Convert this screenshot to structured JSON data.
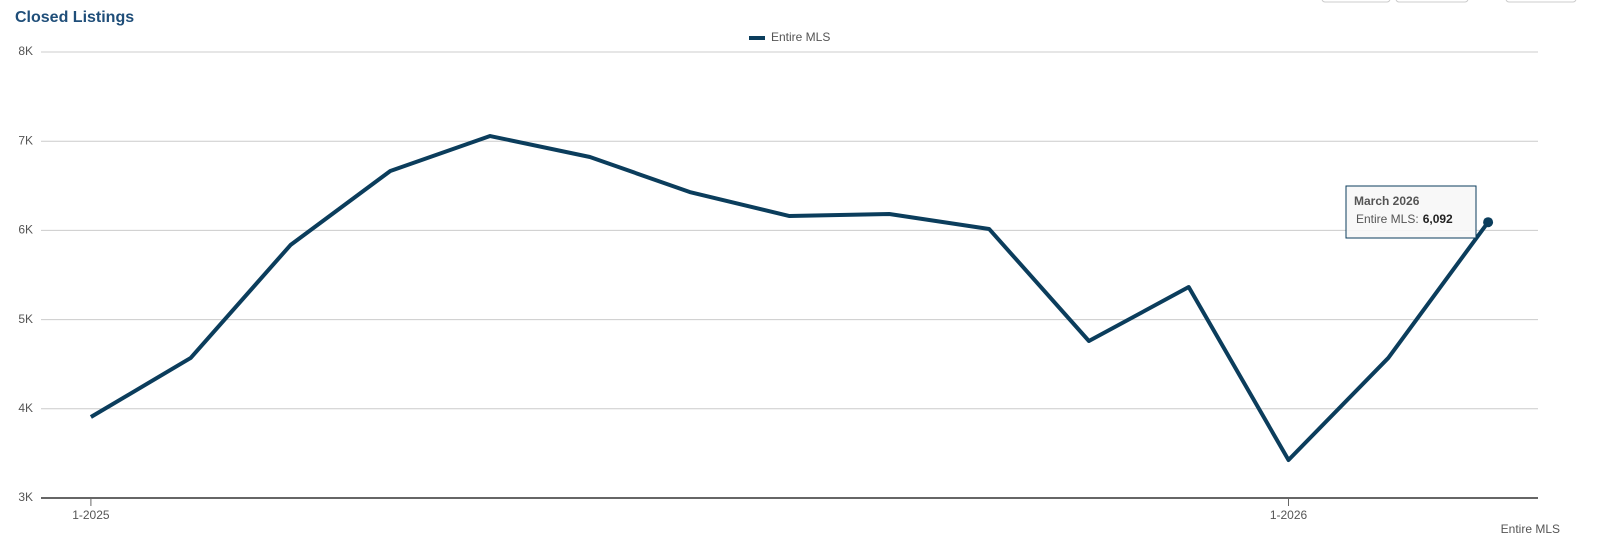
{
  "chart_data": {
    "type": "line",
    "title": "Closed Listings",
    "categories": [
      "1-2025",
      null,
      null,
      null,
      null,
      null,
      null,
      null,
      null,
      null,
      null,
      null,
      "1-2026",
      null,
      null
    ],
    "series": [
      {
        "name": "Entire MLS",
        "color": "#0b3d5c",
        "values": [
          3908,
          4570,
          5836,
          6666,
          7058,
          6823,
          6430,
          6161,
          6184,
          6016,
          4760,
          5365,
          3426,
          4570,
          6092
        ]
      }
    ],
    "ylim": [
      3000,
      8000
    ],
    "yticks": [
      {
        "value": 3000,
        "label": "3K"
      },
      {
        "value": 4000,
        "label": "4K"
      },
      {
        "value": 5000,
        "label": "5K"
      },
      {
        "value": 6000,
        "label": "6K"
      },
      {
        "value": 7000,
        "label": "7K"
      },
      {
        "value": 8000,
        "label": "8K"
      }
    ],
    "grid": true,
    "tooltip": {
      "title": "March 2026",
      "series_label": "Entire MLS:",
      "value": {
        "value": 6092,
        "label": "6,092"
      }
    }
  }
}
